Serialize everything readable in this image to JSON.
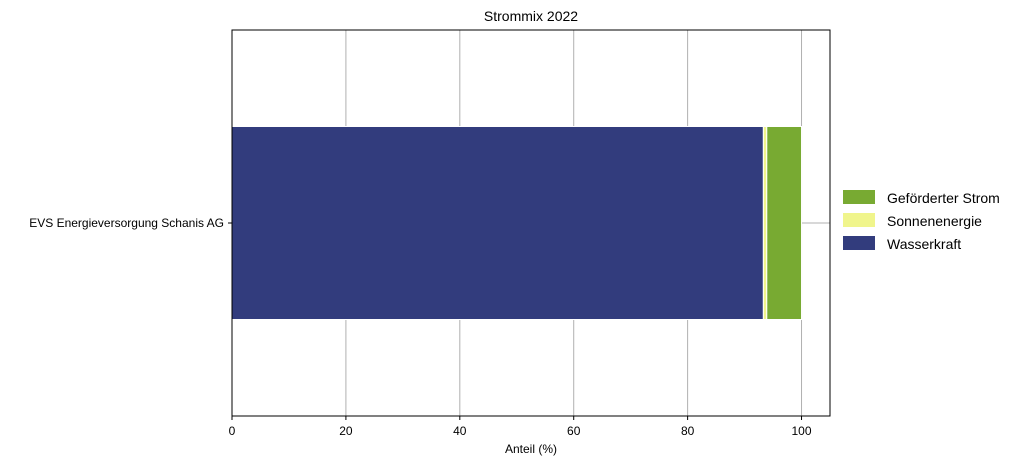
{
  "chart_data": {
    "type": "bar",
    "orientation": "horizontal",
    "stacked": true,
    "title": "Strommix 2022",
    "xlabel": "Anteil (%)",
    "ylabel": "",
    "categories": [
      "EVS Energieversorgung Schanis AG"
    ],
    "xlim": [
      0,
      105
    ],
    "xticks": [
      "0",
      "20",
      "40",
      "60",
      "80",
      "100"
    ],
    "grid": true,
    "legend_position": "right",
    "series": [
      {
        "name": "Wasserkraft",
        "values": [
          93.3
        ],
        "color": "#323c7d"
      },
      {
        "name": "Sonnenenergie",
        "values": [
          0.6
        ],
        "color": "#f0f58c"
      },
      {
        "name": "Geförderter Strom",
        "values": [
          6.1
        ],
        "color": "#78aa32"
      }
    ],
    "legend_order": [
      "Geförderter Strom",
      "Sonnenenergie",
      "Wasserkraft"
    ]
  }
}
